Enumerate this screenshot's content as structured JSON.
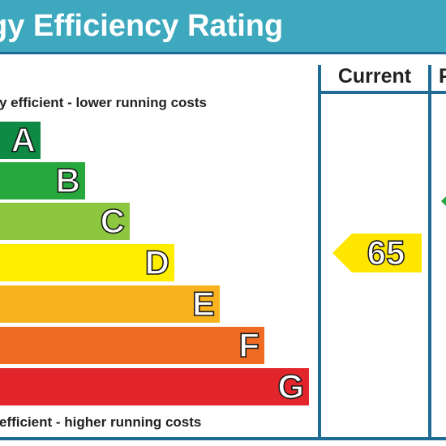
{
  "title": "gy Efficiency Rating",
  "columns": {
    "current": "Current",
    "potential": "P"
  },
  "captions": {
    "top": "y efficient - lower running costs",
    "bottom": " efficient - higher running costs"
  },
  "bands": [
    {
      "letter": "A",
      "color": "#0f8a44"
    },
    {
      "letter": "B",
      "color": "#27a83d"
    },
    {
      "letter": "C",
      "color": "#8dc63f"
    },
    {
      "letter": "D",
      "color": "#ffed00"
    },
    {
      "letter": "E",
      "color": "#f7b21e"
    },
    {
      "letter": "F",
      "color": "#ef6b24"
    },
    {
      "letter": "G",
      "color": "#e2242b"
    }
  ],
  "current_rating": {
    "value": "65",
    "band": "D",
    "color": "#ffe600"
  },
  "potential_rating": {
    "color": "#2aa640"
  },
  "colors": {
    "title_bar": "#3ea9be",
    "frame": "#1f6b95"
  }
}
